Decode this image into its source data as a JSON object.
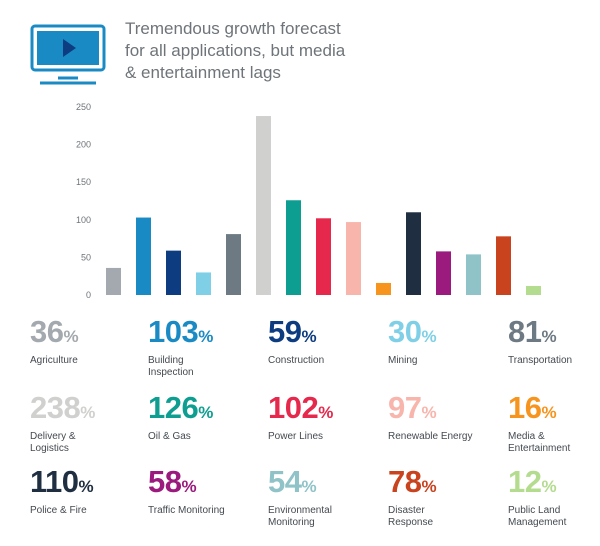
{
  "header": {
    "title": "Tremendous growth forecast\nfor all applications, but media\n& entertainment lags",
    "icon": "monitor-play-icon",
    "icon_color": "#1a8ac4"
  },
  "chart_data": {
    "type": "bar",
    "title": "Tremendous growth forecast for all applications, but media & entertainment lags",
    "xlabel": "",
    "ylabel": "",
    "ylim": [
      0,
      250
    ],
    "yticks": [
      0,
      50,
      100,
      150,
      200,
      250
    ],
    "grid": false,
    "categories": [
      "Agriculture",
      "Building Inspection",
      "Construction",
      "Mining",
      "Transportation",
      "Delivery & Logistics",
      "Oil & Gas",
      "Power Lines",
      "Renewable Energy",
      "Media & Entertainment",
      "Police & Fire",
      "Traffic Monitoring",
      "Environmental Monitoring",
      "Disaster Response",
      "Public Land Management"
    ],
    "values": [
      36,
      103,
      59,
      30,
      81,
      238,
      126,
      102,
      97,
      16,
      110,
      58,
      54,
      78,
      12
    ],
    "colors": [
      "#a3a9ae",
      "#1a8ac4",
      "#0d3d80",
      "#7fd0e6",
      "#6e7a83",
      "#d0d0ce",
      "#0e9e91",
      "#e5284c",
      "#f7b5ac",
      "#f7941d",
      "#1f2e40",
      "#9a1a7d",
      "#8fc3c8",
      "#c8431e",
      "#b4dc8f"
    ]
  },
  "stats": [
    {
      "num": "36",
      "pct": "%",
      "label": "Agriculture",
      "color": "#a3a9ae"
    },
    {
      "num": "103",
      "pct": "%",
      "label": "Building\nInspection",
      "color": "#1a8ac4"
    },
    {
      "num": "59",
      "pct": "%",
      "label": "Construction",
      "color": "#0d3d80"
    },
    {
      "num": "30",
      "pct": "%",
      "label": "Mining",
      "color": "#7fd0e6"
    },
    {
      "num": "81",
      "pct": "%",
      "label": "Transportation",
      "color": "#6e7a83"
    },
    {
      "num": "238",
      "pct": "%",
      "label": "Delivery &\nLogistics",
      "color": "#d0d0ce"
    },
    {
      "num": "126",
      "pct": "%",
      "label": "Oil & Gas",
      "color": "#0e9e91"
    },
    {
      "num": "102",
      "pct": "%",
      "label": "Power Lines",
      "color": "#e5284c"
    },
    {
      "num": "97",
      "pct": "%",
      "label": "Renewable Energy",
      "color": "#f7b5ac"
    },
    {
      "num": "16",
      "pct": "%",
      "label": "Media &\nEntertainment",
      "color": "#f7941d"
    },
    {
      "num": "110",
      "pct": "%",
      "label": "Police & Fire",
      "color": "#1f2e40"
    },
    {
      "num": "58",
      "pct": "%",
      "label": "Traffic Monitoring",
      "color": "#9a1a7d"
    },
    {
      "num": "54",
      "pct": "%",
      "label": "Environmental\nMonitoring",
      "color": "#8fc3c8"
    },
    {
      "num": "78",
      "pct": "%",
      "label": "Disaster\nResponse",
      "color": "#c8431e"
    },
    {
      "num": "12",
      "pct": "%",
      "label": "Public Land\nManagement",
      "color": "#b4dc8f"
    }
  ]
}
